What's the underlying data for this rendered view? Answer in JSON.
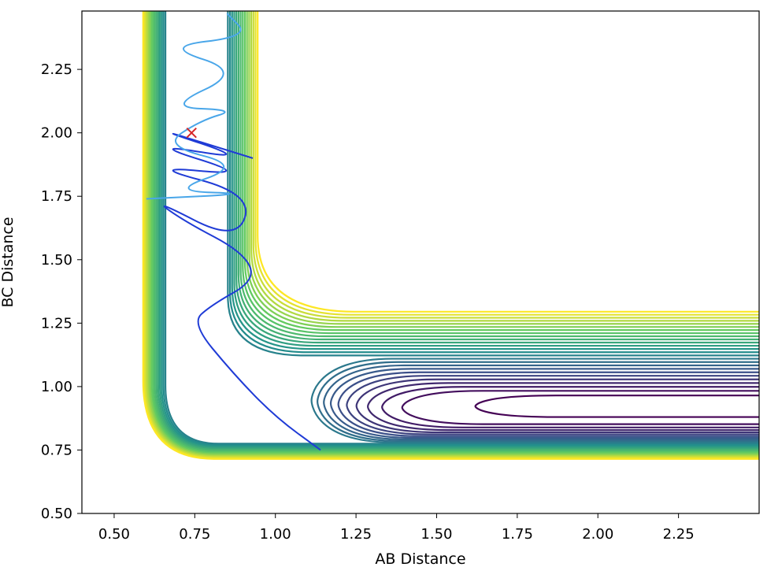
{
  "chart_data": {
    "type": "contour",
    "xlabel": "AB Distance",
    "ylabel": "BC Distance",
    "xlim": [
      0.4,
      2.5
    ],
    "ylim": [
      0.5,
      2.48
    ],
    "xticks": [
      "0.50",
      "0.75",
      "1.00",
      "1.25",
      "1.50",
      "1.75",
      "2.00",
      "2.25"
    ],
    "yticks": [
      "0.50",
      "0.75",
      "1.00",
      "1.25",
      "1.50",
      "1.75",
      "2.00",
      "2.25"
    ],
    "grid": false,
    "legend": "none",
    "colormap": [
      "#440154",
      "#3b528b",
      "#21918c",
      "#5ec962",
      "#fde725"
    ],
    "series": [
      {
        "color": "#1f3bd6",
        "values": [
          [
            1.14,
            0.75
          ],
          [
            1.0,
            0.88
          ],
          [
            0.87,
            1.05
          ],
          [
            0.74,
            1.25
          ],
          [
            0.8,
            1.32
          ],
          [
            0.94,
            1.42
          ],
          [
            0.9,
            1.53
          ],
          [
            0.72,
            1.65
          ],
          [
            0.62,
            1.74
          ],
          [
            0.88,
            1.57
          ],
          [
            0.93,
            1.76
          ],
          [
            0.6,
            1.87
          ],
          [
            0.93,
            1.83
          ],
          [
            0.6,
            1.96
          ],
          [
            0.93,
            1.89
          ],
          [
            0.6,
            2.03
          ],
          [
            0.93,
            1.9
          ]
        ]
      },
      {
        "color": "#49a6e9",
        "values": [
          [
            0.6,
            1.74
          ],
          [
            0.93,
            1.76
          ],
          [
            0.67,
            1.77
          ],
          [
            0.9,
            1.87
          ],
          [
            0.65,
            1.95
          ],
          [
            0.77,
            2.05
          ],
          [
            0.88,
            2.09
          ],
          [
            0.66,
            2.1
          ],
          [
            0.9,
            2.24
          ],
          [
            0.65,
            2.34
          ],
          [
            0.92,
            2.38
          ],
          [
            0.85,
            2.47
          ]
        ]
      }
    ],
    "marker": {
      "x": 0.74,
      "y": 2.0,
      "symbol": "x",
      "color": "#d62728"
    }
  }
}
